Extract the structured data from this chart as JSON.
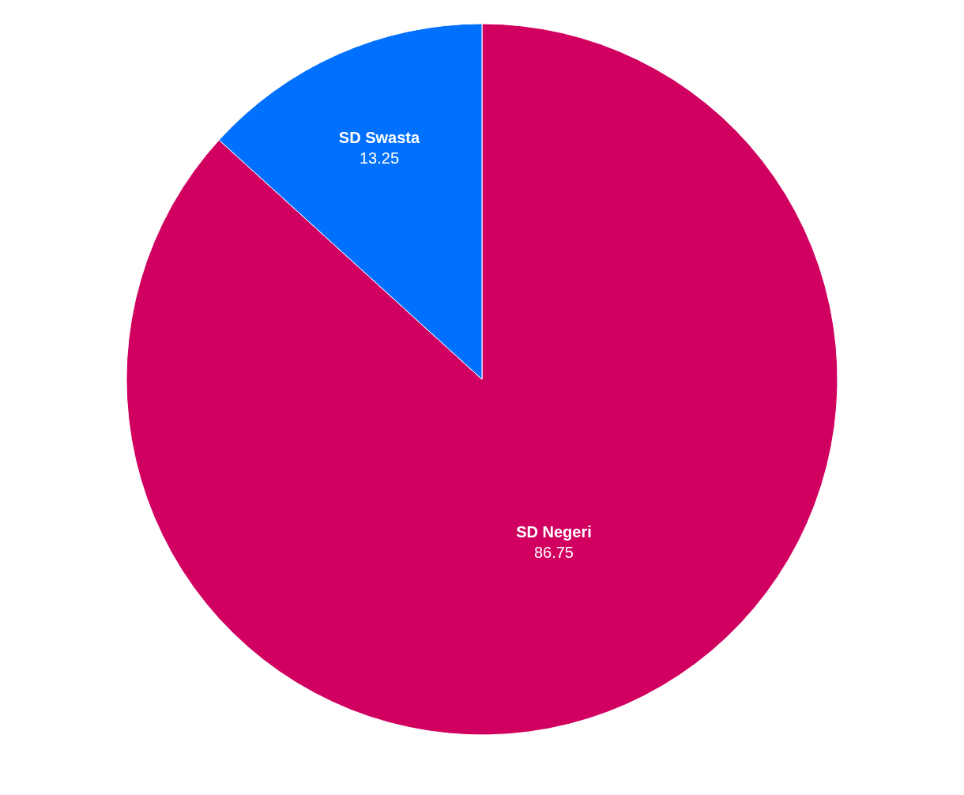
{
  "chart_data": {
    "type": "pie",
    "categories": [
      "SD Negeri",
      "SD Swasta"
    ],
    "values": [
      86.75,
      13.25
    ],
    "colors": [
      "#d10060",
      "#0070ff"
    ],
    "data_labels": true,
    "legend": false
  }
}
